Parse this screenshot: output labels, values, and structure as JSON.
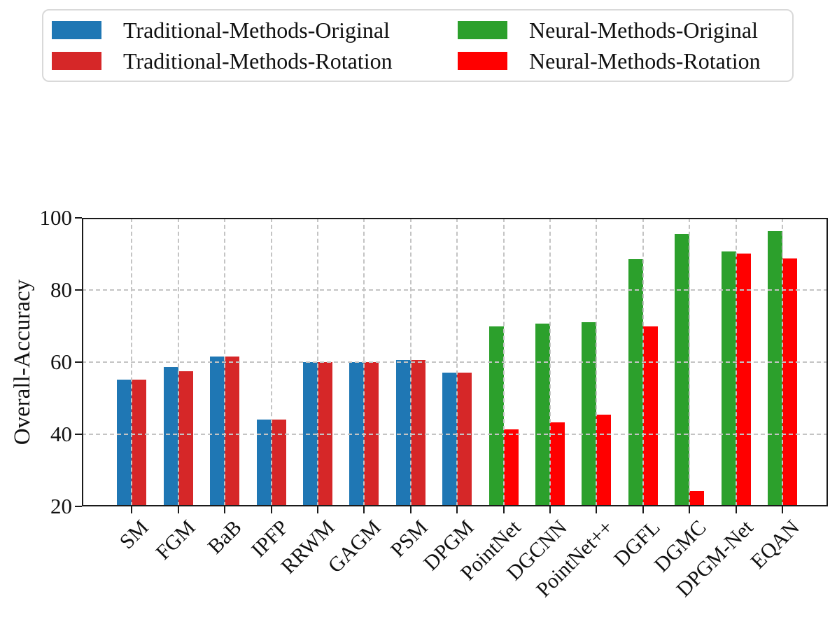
{
  "legend": {
    "items": [
      {
        "name": "traditional-methods-original",
        "label": "Traditional-Methods-Original",
        "color": "#1f77b4"
      },
      {
        "name": "traditional-methods-rotation",
        "label": "Traditional-Methods-Rotation",
        "color": "#d62728"
      },
      {
        "name": "neural-methods-original",
        "label": "Neural-Methods-Original",
        "color": "#2ca02c"
      },
      {
        "name": "neural-methods-rotation",
        "label": "Neural-Methods-Rotation",
        "color": "#ff0000"
      }
    ]
  },
  "chart_data": {
    "type": "bar",
    "title": "",
    "xlabel": "",
    "ylabel": "Overall-Accuracy",
    "ylim": [
      20,
      100
    ],
    "yticks": [
      20,
      40,
      60,
      80,
      100
    ],
    "grid": true,
    "grid_style": "dashed",
    "legend_position": "top",
    "categories": [
      "SM",
      "FGM",
      "BaB",
      "IPFP",
      "RRWM",
      "GAGM",
      "PSM",
      "DPGM",
      "PointNet",
      "DGCNN",
      "PointNet++",
      "DGFL",
      "DGMC",
      "DPGM-Net",
      "EQAN"
    ],
    "series": [
      {
        "name": "Traditional-Methods-Original",
        "color": "#1f77b4",
        "role": "original",
        "values": [
          55.2,
          58.6,
          61.5,
          44.0,
          60.0,
          60.0,
          60.5,
          57.0,
          null,
          null,
          null,
          null,
          null,
          null,
          null
        ]
      },
      {
        "name": "Traditional-Methods-Rotation",
        "color": "#d62728",
        "role": "rotation",
        "values": [
          55.2,
          57.4,
          61.5,
          44.1,
          60.0,
          60.0,
          60.5,
          57.0,
          null,
          null,
          null,
          null,
          null,
          null,
          null
        ]
      },
      {
        "name": "Neural-Methods-Original",
        "color": "#2ca02c",
        "role": "original",
        "values": [
          null,
          null,
          null,
          null,
          null,
          null,
          null,
          null,
          70.0,
          70.6,
          71.0,
          88.6,
          95.6,
          90.6,
          96.4
        ]
      },
      {
        "name": "Neural-Methods-Rotation",
        "color": "#ff0000",
        "role": "rotation",
        "values": [
          null,
          null,
          null,
          null,
          null,
          null,
          null,
          null,
          41.4,
          43.3,
          45.5,
          70.0,
          24.3,
          90.1,
          88.7
        ]
      }
    ]
  }
}
